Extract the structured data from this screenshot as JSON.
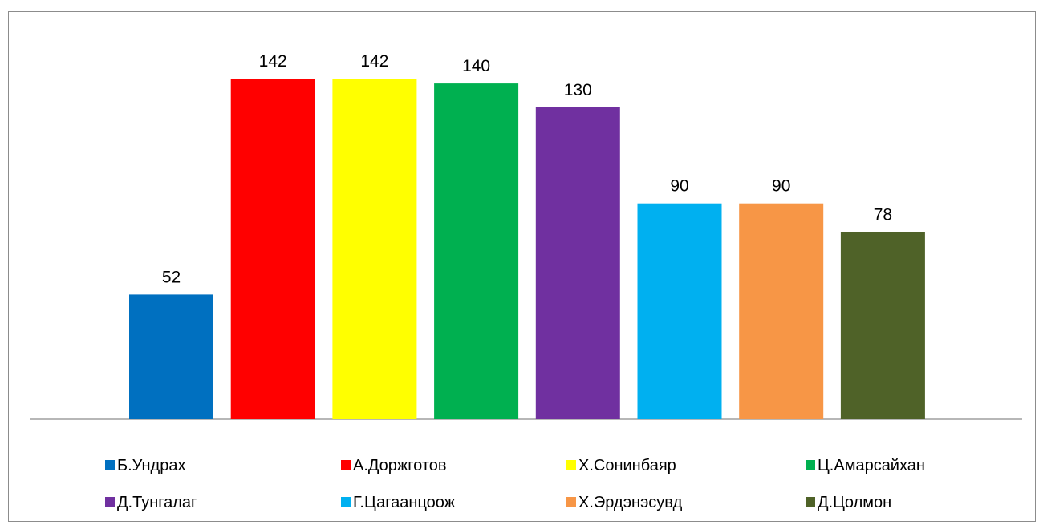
{
  "chart_data": {
    "type": "bar",
    "categories": [
      "Б.Ундрах",
      "А.Доржготов",
      "Х.Сонинбаяр",
      "Ц.Амарсайхан",
      "Д.Тунгалаг",
      "Г.Цагаанцоож",
      "Х.Эрдэнэсувд",
      "Д.Цолмон"
    ],
    "values": [
      52,
      142,
      142,
      140,
      130,
      90,
      90,
      78
    ],
    "colors": [
      "#0070C0",
      "#FF0000",
      "#FFFF00",
      "#00B050",
      "#7030A0",
      "#00B0F0",
      "#F79646",
      "#4F6228"
    ],
    "title": "",
    "xlabel": "",
    "ylabel": "",
    "ylim": [
      0,
      160
    ],
    "grid": false,
    "data_labels": true,
    "legend_position": "bottom"
  }
}
